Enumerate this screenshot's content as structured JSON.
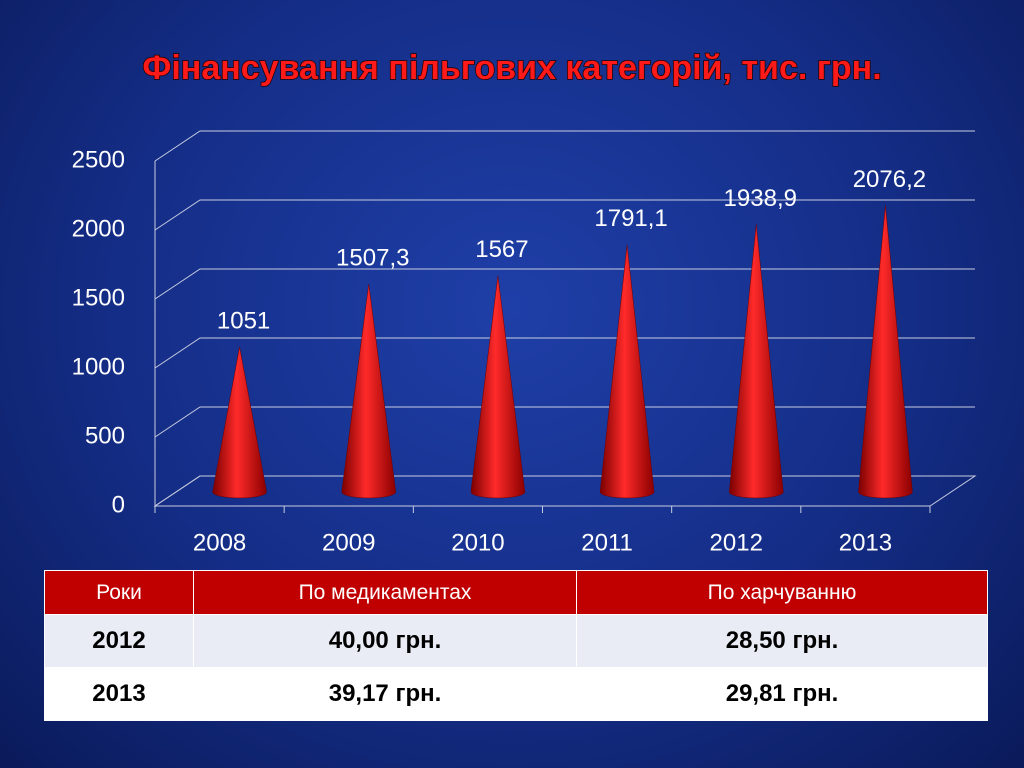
{
  "chart_data": {
    "type": "bar",
    "title": "Фінансування пільгових категорій, тис. грн.",
    "categories": [
      "2008",
      "2009",
      "2010",
      "2011",
      "2012",
      "2013"
    ],
    "values": [
      1051,
      1507.3,
      1567,
      1791.1,
      1938.9,
      2076.2
    ],
    "value_labels": [
      "1051",
      "1507,3",
      "1567",
      "1791,1",
      "1938,9",
      "2076,2"
    ],
    "color": "#d00000",
    "ylim": [
      0,
      2500
    ],
    "yticks": [
      0,
      500,
      1000,
      1500,
      2000,
      2500
    ],
    "grid": true
  },
  "table": {
    "header": [
      "Роки",
      "По медикаментах",
      "По харчуванню"
    ],
    "rows": [
      [
        "2012",
        "40,00 грн.",
        "28,50 грн."
      ],
      [
        "2013",
        "39,17 грн.",
        "29,81 грн."
      ]
    ]
  }
}
